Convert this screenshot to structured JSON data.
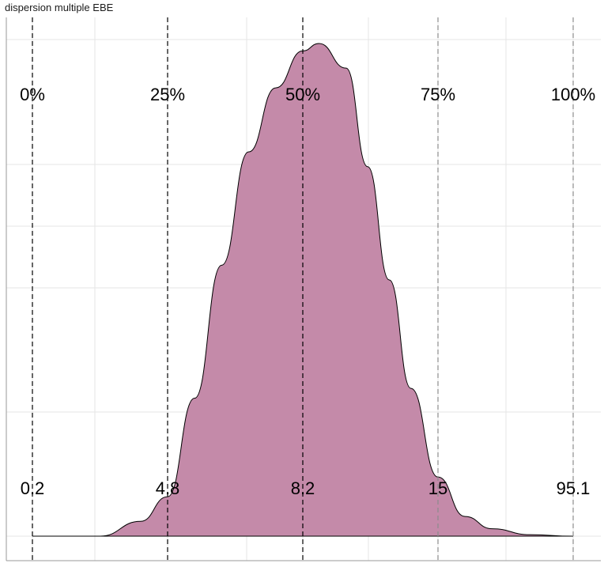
{
  "title": "dispersion multiple EBE",
  "colors": {
    "fill": "#c48aa9",
    "outline": "#000000",
    "grid": "#e6e6e6",
    "background": "#ffffff",
    "quantile_line_dark": "#000000",
    "quantile_line_light": "#8c8c8c"
  },
  "chart_data": {
    "type": "area",
    "title": "dispersion multiple EBE",
    "xlabel": "",
    "ylabel": "",
    "grid": true,
    "quantiles": [
      {
        "label": "0%",
        "value": "0.2"
      },
      {
        "label": "25%",
        "value": "4.8"
      },
      {
        "label": "50%",
        "value": "8.2"
      },
      {
        "label": "75%",
        "value": "15"
      },
      {
        "label": "100%",
        "value": "95.1"
      }
    ],
    "density_profile": {
      "x_quantile_position": [
        0.0,
        0.125,
        0.2,
        0.25,
        0.3,
        0.35,
        0.4,
        0.45,
        0.5,
        0.53,
        0.58,
        0.62,
        0.66,
        0.7,
        0.75,
        0.8,
        0.85,
        0.92,
        1.0
      ],
      "relative_density": [
        0.0,
        0.0,
        0.03,
        0.08,
        0.28,
        0.55,
        0.78,
        0.91,
        0.985,
        1.0,
        0.95,
        0.75,
        0.52,
        0.3,
        0.12,
        0.04,
        0.015,
        0.003,
        0.0
      ]
    }
  }
}
